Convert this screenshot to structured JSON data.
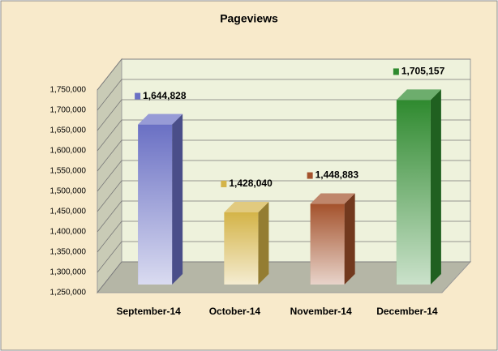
{
  "chart_data": {
    "type": "bar3d",
    "title": "Pageviews",
    "categories": [
      "September-14",
      "October-14",
      "November-14",
      "December-14"
    ],
    "values": [
      1644828,
      1428040,
      1448883,
      1705157
    ],
    "value_labels": [
      "1,644,828",
      "1,428,040",
      "1,448,883",
      "1,705,157"
    ],
    "colors": [
      "#6a70c4",
      "#d4b448",
      "#a4522c",
      "#2f8a2f"
    ],
    "ylim": [
      1250000,
      1750000
    ],
    "yticks": [
      {
        "value": 1250000,
        "label": "1,250,000"
      },
      {
        "value": 1300000,
        "label": "1,300,000"
      },
      {
        "value": 1350000,
        "label": "1,350,000"
      },
      {
        "value": 1400000,
        "label": "1,400,000"
      },
      {
        "value": 1450000,
        "label": "1,450,000"
      },
      {
        "value": 1500000,
        "label": "1,500,000"
      },
      {
        "value": 1550000,
        "label": "1,550,000"
      },
      {
        "value": 1600000,
        "label": "1,600,000"
      },
      {
        "value": 1650000,
        "label": "1,650,000"
      },
      {
        "value": 1700000,
        "label": "1,700,000"
      },
      {
        "value": 1750000,
        "label": "1,750,000"
      }
    ],
    "grid": true
  }
}
